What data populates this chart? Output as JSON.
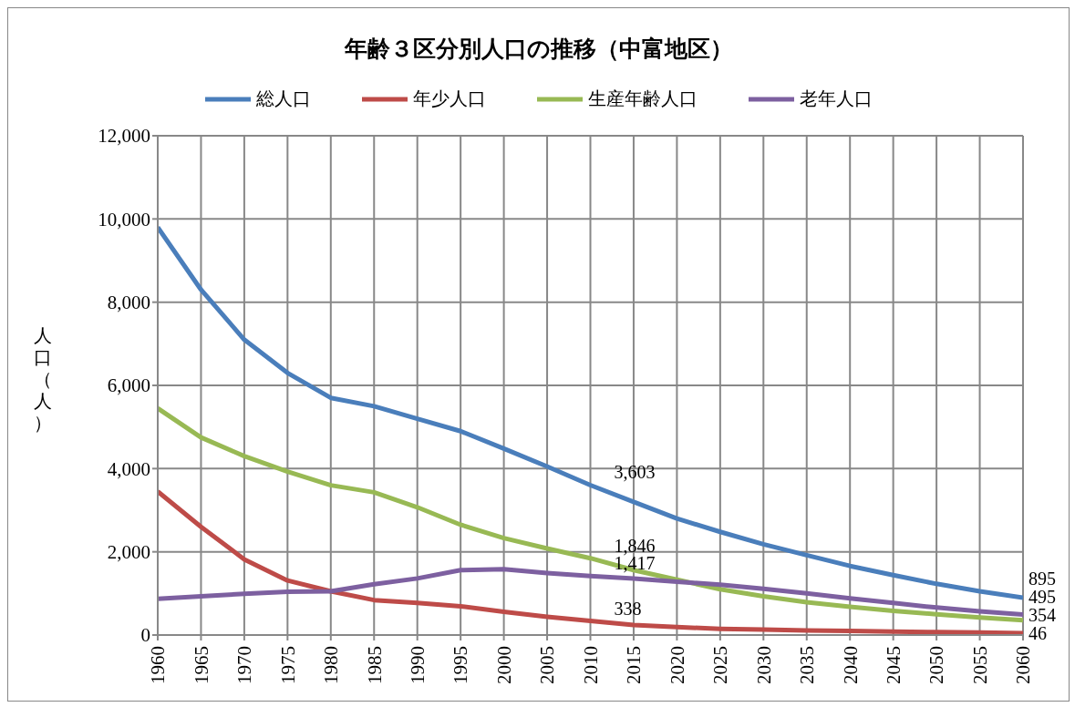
{
  "chart_data": {
    "type": "line",
    "title": "年齢３区分別人口の推移（中富地区）",
    "ylabel": "人口（人）",
    "x": [
      1960,
      1965,
      1970,
      1975,
      1980,
      1985,
      1990,
      1995,
      2000,
      2005,
      2010,
      2015,
      2020,
      2025,
      2030,
      2035,
      2040,
      2045,
      2050,
      2055,
      2060
    ],
    "series": [
      {
        "name": "総人口",
        "color": "#4a7ebb",
        "values": [
          9800,
          8300,
          7100,
          6300,
          5700,
          5500,
          5200,
          4900,
          4480,
          4050,
          3603,
          3200,
          2800,
          2480,
          2180,
          1920,
          1660,
          1440,
          1230,
          1050,
          895
        ],
        "value_labels": [
          null,
          null,
          null,
          null,
          null,
          null,
          null,
          null,
          null,
          null,
          "3,603",
          null,
          null,
          null,
          null,
          null,
          null,
          null,
          null,
          null,
          "895"
        ]
      },
      {
        "name": "年少人口",
        "color": "#be4b48",
        "values": [
          3450,
          2600,
          1820,
          1310,
          1050,
          840,
          770,
          690,
          560,
          440,
          338,
          240,
          190,
          150,
          130,
          110,
          100,
          80,
          70,
          60,
          46
        ],
        "value_labels": [
          null,
          null,
          null,
          null,
          null,
          null,
          null,
          null,
          null,
          null,
          "338",
          null,
          null,
          null,
          null,
          null,
          null,
          null,
          null,
          null,
          "46"
        ]
      },
      {
        "name": "生産年齢人口",
        "color": "#98b954",
        "values": [
          5450,
          4750,
          4300,
          3930,
          3600,
          3430,
          3070,
          2650,
          2330,
          2080,
          1846,
          1560,
          1330,
          1100,
          930,
          790,
          680,
          580,
          500,
          420,
          354
        ],
        "value_labels": [
          null,
          null,
          null,
          null,
          null,
          null,
          null,
          null,
          null,
          null,
          "1,846",
          null,
          null,
          null,
          null,
          null,
          null,
          null,
          null,
          null,
          "354"
        ]
      },
      {
        "name": "老年人口",
        "color": "#7d60a0",
        "values": [
          870,
          930,
          990,
          1040,
          1050,
          1220,
          1360,
          1560,
          1580,
          1490,
          1417,
          1360,
          1280,
          1210,
          1110,
          1000,
          880,
          770,
          660,
          570,
          495
        ],
        "value_labels": [
          null,
          null,
          null,
          null,
          null,
          null,
          null,
          null,
          null,
          null,
          "1,417",
          null,
          null,
          null,
          null,
          null,
          null,
          null,
          null,
          null,
          "495"
        ]
      }
    ],
    "xlim": [
      1960,
      2060
    ],
    "xticks": [
      1960,
      1965,
      1970,
      1975,
      1980,
      1985,
      1990,
      1995,
      2000,
      2005,
      2010,
      2015,
      2020,
      2025,
      2030,
      2035,
      2040,
      2045,
      2050,
      2055,
      2060
    ],
    "ylim": [
      0,
      12000
    ],
    "yticks": [
      {
        "value": 0,
        "label": "0"
      },
      {
        "value": 2000,
        "label": "2,000"
      },
      {
        "value": 4000,
        "label": "4,000"
      },
      {
        "value": 6000,
        "label": "6,000"
      },
      {
        "value": 8000,
        "label": "8,000"
      },
      {
        "value": 10000,
        "label": "10,000"
      },
      {
        "value": 12000,
        "label": "12,000"
      }
    ],
    "grid": true,
    "legend": "top",
    "marker": "none",
    "line_style": "solid"
  }
}
